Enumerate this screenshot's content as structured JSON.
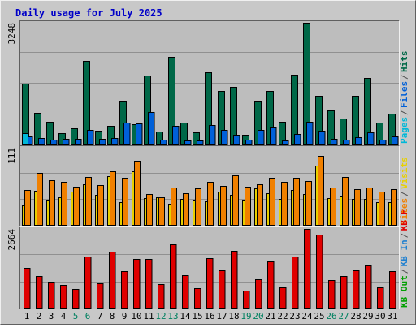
{
  "colors": {
    "background": "#c8c8c8",
    "plot_area": "#bdbdbd",
    "border_dark": "#606060",
    "border_light": "#f0f0f0",
    "grid": "#909090",
    "title": "#0000c8",
    "hits": "#006848",
    "files": "#0060d8",
    "pages": "#00b8d8",
    "visits": "#e8d000",
    "sites": "#f08000",
    "kb_f": "#e00000",
    "kb_in": "#2080d0",
    "kb_out": "#00a000",
    "weekend_label": "#008060",
    "weekday_label": "#000000",
    "separator": "#505050"
  },
  "chart_data": {
    "type": "bar",
    "title": "Daily usage for July 2025",
    "categories": [
      "1",
      "2",
      "3",
      "4",
      "5",
      "6",
      "7",
      "8",
      "9",
      "10",
      "11",
      "12",
      "13",
      "14",
      "15",
      "16",
      "17",
      "18",
      "19",
      "20",
      "21",
      "22",
      "23",
      "24",
      "25",
      "26",
      "27",
      "28",
      "29",
      "30",
      "31"
    ],
    "weekend_days": [
      "5",
      "6",
      "12",
      "13",
      "19",
      "20",
      "26",
      "27"
    ],
    "panels": [
      {
        "ymax_label": "3248",
        "ymax": 3248,
        "right_labels": [
          {
            "text": "Hits",
            "color": "hits"
          },
          {
            "text": "Files",
            "color": "files"
          },
          {
            "text": "Pages",
            "color": "pages"
          }
        ],
        "series": [
          {
            "name": "Hits",
            "color": "hits",
            "values": [
              1620,
              840,
              600,
              300,
              440,
              2230,
              360,
              500,
              1150,
              540,
              1830,
              350,
              2330,
              580,
              330,
              1930,
              1420,
              1530,
              260,
              1140,
              1420,
              610,
              1870,
              3240,
              1300,
              920,
              700,
              1310,
              1780,
              590,
              820
            ]
          },
          {
            "name": "Files",
            "color": "files",
            "values": [
              220,
              170,
              140,
              150,
              150,
              400,
              160,
              180,
              580,
              560,
              870,
              120,
              500,
              110,
              110,
              530,
              380,
              260,
              120,
              380,
              460,
              110,
              290,
              600,
              370,
              150,
              130,
              200,
              330,
              140,
              220
            ]
          },
          {
            "name": "Pages",
            "color": "pages",
            "values": [
              300,
              0,
              0,
              0,
              0,
              0,
              0,
              0,
              0,
              0,
              0,
              0,
              0,
              0,
              0,
              0,
              0,
              0,
              0,
              0,
              0,
              0,
              0,
              0,
              0,
              0,
              0,
              0,
              0,
              0,
              0
            ]
          }
        ]
      },
      {
        "ymax_label": "111",
        "ymax": 111,
        "right_labels": [
          {
            "text": "Visits",
            "color": "visits"
          },
          {
            "text": "Sites",
            "color": "sites"
          }
        ],
        "series": [
          {
            "name": "Visits",
            "color": "visits",
            "values": [
              29,
              50,
              37,
              41,
              49,
              59,
              44,
              70,
              33,
              77,
              39,
              40,
              31,
              38,
              37,
              35,
              48,
              44,
              37,
              53,
              46,
              38,
              51,
              45,
              86,
              39,
              42,
              38,
              38,
              34,
              33
            ]
          },
          {
            "name": "Sites",
            "color": "sites",
            "values": [
              51,
              75,
              65,
              63,
              56,
              69,
              58,
              77,
              68,
              93,
              45,
              40,
              54,
              46,
              53,
              63,
              57,
              72,
              56,
              59,
              68,
              62,
              68,
              64,
              100,
              54,
              69,
              52,
              54,
              49,
              52
            ]
          }
        ]
      },
      {
        "ymax_label": "2664",
        "ymax": 2664,
        "right_labels": [
          {
            "text": "KB F",
            "color": "kb_f"
          },
          {
            "text": "KB In",
            "color": "kb_in"
          },
          {
            "text": "KB Out",
            "color": "kb_out"
          }
        ],
        "series": [
          {
            "name": "KB F",
            "color": "kb_f",
            "values": [
              1360,
              1090,
              910,
              790,
              650,
              1730,
              840,
              1890,
              1250,
              1660,
              1660,
              810,
              2140,
              1110,
              690,
              1680,
              1280,
              1940,
              600,
              970,
              1590,
              710,
              1730,
              2660,
              2480,
              960,
              1080,
              1270,
              1450,
              700,
              1250
            ]
          }
        ]
      }
    ]
  }
}
